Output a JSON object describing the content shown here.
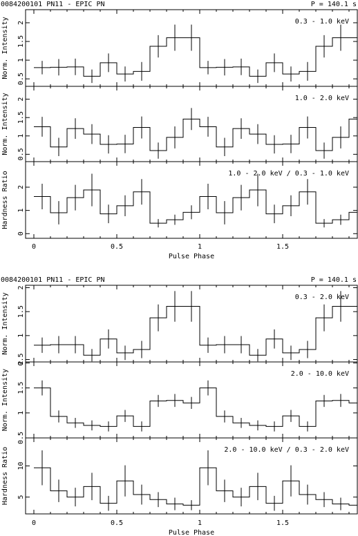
{
  "chart_data": [
    {
      "type": "line",
      "header_left": "0084200101 PN11 - EPIC PN",
      "header_right": "P = 140.1 s",
      "xlabel": "Pulse Phase",
      "xlim": [
        -0.05,
        1.95
      ],
      "x_ticks": [
        0,
        0.5,
        1,
        1.5
      ],
      "x_tick_labels": [
        "0",
        "0.5",
        "1",
        "1.5"
      ],
      "panels": [
        {
          "label": "0.3 - 1.0 keV",
          "ylabel": "Norm. Intensity",
          "ylim": [
            0.3,
            2.35
          ],
          "y_ticks": [
            0.5,
            1,
            1.5,
            2
          ],
          "y_tick_labels": [
            "0.5",
            "1",
            "1.5",
            "2"
          ],
          "x": [
            0.05,
            0.15,
            0.25,
            0.35,
            0.45,
            0.55,
            0.65,
            0.75,
            0.85,
            0.95,
            1.05,
            1.15,
            1.25,
            1.35,
            1.45,
            1.55,
            1.65,
            1.75,
            1.85,
            1.95
          ],
          "values": [
            0.8,
            0.81,
            0.82,
            0.57,
            0.93,
            0.63,
            0.7,
            1.37,
            1.6,
            1.6,
            0.8,
            0.81,
            0.82,
            0.57,
            0.93,
            0.63,
            0.7,
            1.37,
            1.6,
            1.6
          ],
          "errors": [
            0.18,
            0.22,
            0.22,
            0.18,
            0.25,
            0.2,
            0.25,
            0.3,
            0.35,
            0.35,
            0.18,
            0.22,
            0.22,
            0.18,
            0.25,
            0.2,
            0.25,
            0.3,
            0.35,
            0.35
          ]
        },
        {
          "label": "1.0 - 2.0 keV",
          "ylabel": "Norm. Intensity",
          "ylim": [
            0.3,
            2.35
          ],
          "y_ticks": [
            0.5,
            1,
            1.5,
            2
          ],
          "y_tick_labels": [
            "0.5",
            "1",
            "1.5",
            "2"
          ],
          "x": [
            0.05,
            0.15,
            0.25,
            0.35,
            0.45,
            0.55,
            0.65,
            0.75,
            0.85,
            0.95,
            1.05,
            1.15,
            1.25,
            1.35,
            1.45,
            1.55,
            1.65,
            1.75,
            1.85,
            1.95
          ],
          "values": [
            1.25,
            0.7,
            1.2,
            1.05,
            0.77,
            0.78,
            1.23,
            0.6,
            0.96,
            1.46,
            1.25,
            0.7,
            1.2,
            1.05,
            0.77,
            0.78,
            1.23,
            0.6,
            0.96,
            1.46
          ],
          "errors": [
            0.27,
            0.25,
            0.28,
            0.27,
            0.25,
            0.25,
            0.3,
            0.22,
            0.3,
            0.3,
            0.27,
            0.25,
            0.28,
            0.27,
            0.25,
            0.25,
            0.3,
            0.22,
            0.3,
            0.3
          ]
        },
        {
          "label": "1.0 - 2.0 keV / 0.3 - 1.0 keV",
          "ylabel": "Hardness Ratio",
          "ylim": [
            -0.2,
            3.1
          ],
          "y_ticks": [
            0,
            1,
            2
          ],
          "y_tick_labels": [
            "0",
            "1",
            "2"
          ],
          "x": [
            0.05,
            0.15,
            0.25,
            0.35,
            0.45,
            0.55,
            0.65,
            0.75,
            0.85,
            0.95,
            1.05,
            1.15,
            1.25,
            1.35,
            1.45,
            1.55,
            1.65,
            1.75,
            1.85,
            1.95
          ],
          "values": [
            1.6,
            0.9,
            1.55,
            1.88,
            0.85,
            1.2,
            1.8,
            0.45,
            0.6,
            0.92,
            1.6,
            0.9,
            1.55,
            1.88,
            0.85,
            1.2,
            1.8,
            0.45,
            0.6,
            0.92
          ],
          "errors": [
            0.55,
            0.5,
            0.55,
            0.7,
            0.4,
            0.45,
            0.55,
            0.18,
            0.22,
            0.3,
            0.55,
            0.5,
            0.55,
            0.7,
            0.4,
            0.45,
            0.55,
            0.18,
            0.22,
            0.3
          ]
        }
      ]
    },
    {
      "type": "line",
      "header_left": "0084200101 PN11 - EPIC PN",
      "header_right": "P = 140.1 s",
      "xlabel": "Pulse Phase",
      "xlim": [
        -0.05,
        1.95
      ],
      "x_ticks": [
        0,
        0.5,
        1,
        1.5
      ],
      "x_tick_labels": [
        "0",
        "0.5",
        "1",
        "1.5"
      ],
      "panels": [
        {
          "label": "0.3 - 2.0 keV",
          "ylabel": "Norm. Intensity",
          "ylim": [
            0.45,
            2.05
          ],
          "y_ticks": [
            0.5,
            1,
            1.5,
            2
          ],
          "y_tick_labels": [
            "0.5",
            "1",
            "1.5",
            "2"
          ],
          "x": [
            0.05,
            0.15,
            0.25,
            0.35,
            0.45,
            0.55,
            0.65,
            0.75,
            0.85,
            0.95,
            1.05,
            1.15,
            1.25,
            1.35,
            1.45,
            1.55,
            1.65,
            1.75,
            1.85,
            1.95
          ],
          "values": [
            0.8,
            0.81,
            0.81,
            0.59,
            0.93,
            0.64,
            0.71,
            1.37,
            1.61,
            1.61,
            0.8,
            0.81,
            0.81,
            0.59,
            0.93,
            0.64,
            0.71,
            1.37,
            1.61,
            1.61
          ],
          "errors": [
            0.16,
            0.18,
            0.18,
            0.13,
            0.2,
            0.15,
            0.18,
            0.28,
            0.32,
            0.32,
            0.16,
            0.18,
            0.18,
            0.13,
            0.2,
            0.15,
            0.18,
            0.28,
            0.32,
            0.32
          ]
        },
        {
          "label": "2.0 - 10.0 keV",
          "ylabel": "Norm. Intensity",
          "ylim": [
            0.5,
            2.02
          ],
          "y_ticks": [
            0.5,
            1,
            1.5,
            2
          ],
          "y_tick_labels": [
            "0.5",
            "1",
            "1.5",
            "2"
          ],
          "x": [
            0.05,
            0.15,
            0.25,
            0.35,
            0.45,
            0.55,
            0.65,
            0.75,
            0.85,
            0.95,
            1.05,
            1.15,
            1.25,
            1.35,
            1.45,
            1.55,
            1.65,
            1.75,
            1.85,
            1.95
          ],
          "values": [
            1.5,
            0.93,
            0.8,
            0.75,
            0.73,
            0.94,
            0.73,
            1.24,
            1.25,
            1.2,
            1.5,
            0.93,
            0.8,
            0.75,
            0.73,
            0.94,
            0.73,
            1.24,
            1.25,
            1.2
          ],
          "errors": [
            0.15,
            0.12,
            0.1,
            0.1,
            0.1,
            0.12,
            0.1,
            0.12,
            0.13,
            0.12,
            0.15,
            0.12,
            0.1,
            0.1,
            0.1,
            0.12,
            0.1,
            0.12,
            0.13,
            0.12
          ]
        },
        {
          "label": "2.0 - 10.0 keV / 0.3 - 2.0 keV",
          "ylabel": "Hardness Ratio",
          "ylim": [
            2.3,
            14.5
          ],
          "y_ticks": [
            5,
            10
          ],
          "y_tick_labels": [
            "5",
            "10"
          ],
          "x": [
            0.05,
            0.15,
            0.25,
            0.35,
            0.45,
            0.55,
            0.65,
            0.75,
            0.85,
            0.95,
            1.05,
            1.15,
            1.25,
            1.35,
            1.45,
            1.55,
            1.65,
            1.75,
            1.85,
            1.95
          ],
          "values": [
            9.7,
            6.0,
            5.0,
            6.7,
            4.0,
            7.6,
            5.4,
            4.6,
            3.9,
            3.7,
            9.7,
            6.0,
            5.0,
            6.7,
            4.0,
            7.6,
            5.4,
            4.6,
            3.9,
            3.7
          ],
          "errors": [
            2.8,
            1.8,
            1.5,
            2.2,
            1.2,
            2.5,
            1.6,
            1.2,
            1.0,
            0.8,
            2.8,
            1.8,
            1.5,
            2.2,
            1.2,
            2.5,
            1.6,
            1.2,
            1.0,
            0.8
          ]
        }
      ]
    }
  ]
}
